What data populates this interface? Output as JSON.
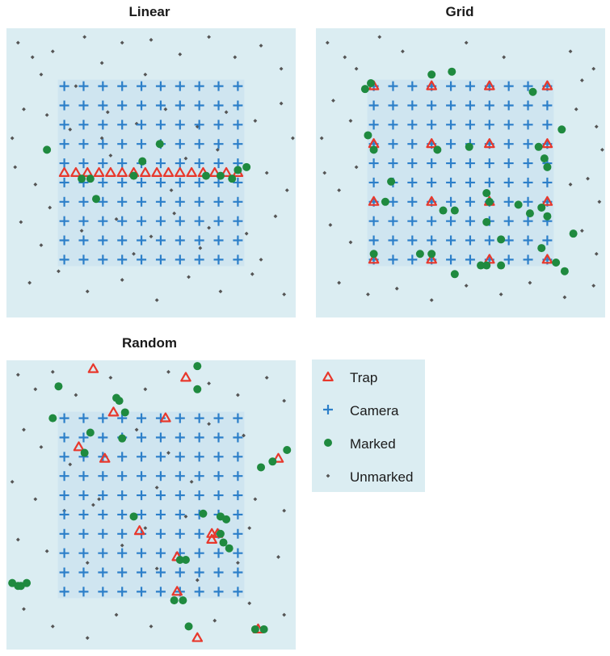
{
  "colors": {
    "panel_bg": "#dbedf2",
    "inner_bg": "#cfe5f0",
    "trap": "#e8382c",
    "camera": "#2c7fc9",
    "marked": "#1f8a3f",
    "unmarked": "#555555"
  },
  "legend": {
    "placement": "right-bottom",
    "items": [
      {
        "label": "Trap",
        "symbol": "triangle-icon"
      },
      {
        "label": "Camera",
        "symbol": "plus-icon"
      },
      {
        "label": "Marked",
        "symbol": "circle-icon"
      },
      {
        "label": "Unmarked",
        "symbol": "diamond-icon"
      }
    ]
  },
  "chart_data": [
    {
      "type": "scatter",
      "title": "Linear",
      "xlim": [
        0,
        100
      ],
      "ylim": [
        0,
        100
      ],
      "camera_grid": {
        "cols": 10,
        "rows": 10,
        "x_start": 20,
        "x_end": 80,
        "y_start": 80,
        "y_end": 20
      },
      "traps": [
        [
          20,
          50
        ],
        [
          24,
          50
        ],
        [
          28,
          50
        ],
        [
          32,
          50
        ],
        [
          36,
          50
        ],
        [
          40,
          50
        ],
        [
          44,
          50
        ],
        [
          48,
          50
        ],
        [
          52,
          50
        ],
        [
          56,
          50
        ],
        [
          60,
          50
        ],
        [
          64,
          50
        ],
        [
          68,
          50
        ],
        [
          72,
          50
        ],
        [
          76,
          50
        ],
        [
          80,
          50
        ]
      ],
      "marked": [
        [
          14,
          58
        ],
        [
          53,
          60
        ],
        [
          47,
          54
        ],
        [
          26,
          48
        ],
        [
          44,
          49
        ],
        [
          29,
          48
        ],
        [
          69,
          49
        ],
        [
          83,
          52
        ],
        [
          78,
          48
        ],
        [
          31,
          41
        ],
        [
          74,
          49
        ],
        [
          80,
          51
        ]
      ],
      "unmarked": [
        [
          4,
          95
        ],
        [
          9,
          90
        ],
        [
          12,
          84
        ],
        [
          16,
          92
        ],
        [
          27,
          97
        ],
        [
          33,
          88
        ],
        [
          40,
          95
        ],
        [
          50,
          96
        ],
        [
          60,
          91
        ],
        [
          70,
          97
        ],
        [
          79,
          90
        ],
        [
          88,
          94
        ],
        [
          95,
          86
        ],
        [
          6,
          72
        ],
        [
          14,
          70
        ],
        [
          22,
          65
        ],
        [
          35,
          71
        ],
        [
          45,
          67
        ],
        [
          55,
          72
        ],
        [
          66,
          66
        ],
        [
          76,
          71
        ],
        [
          86,
          68
        ],
        [
          95,
          74
        ],
        [
          3,
          52
        ],
        [
          10,
          46
        ],
        [
          36,
          56
        ],
        [
          62,
          55
        ],
        [
          90,
          50
        ],
        [
          97,
          44
        ],
        [
          5,
          33
        ],
        [
          15,
          38
        ],
        [
          26,
          30
        ],
        [
          38,
          34
        ],
        [
          50,
          28
        ],
        [
          58,
          36
        ],
        [
          70,
          31
        ],
        [
          83,
          29
        ],
        [
          93,
          35
        ],
        [
          8,
          12
        ],
        [
          18,
          16
        ],
        [
          28,
          9
        ],
        [
          40,
          13
        ],
        [
          52,
          6
        ],
        [
          63,
          14
        ],
        [
          74,
          9
        ],
        [
          85,
          15
        ],
        [
          96,
          8
        ],
        [
          12,
          25
        ],
        [
          44,
          22
        ],
        [
          67,
          24
        ],
        [
          88,
          20
        ],
        [
          2,
          62
        ],
        [
          99,
          62
        ],
        [
          48,
          84
        ],
        [
          24,
          80
        ],
        [
          57,
          44
        ],
        [
          73,
          58
        ],
        [
          33,
          62
        ]
      ]
    },
    {
      "type": "scatter",
      "title": "Grid",
      "xlim": [
        0,
        100
      ],
      "ylim": [
        0,
        100
      ],
      "camera_grid": {
        "cols": 10,
        "rows": 10,
        "x_start": 20,
        "x_end": 80,
        "y_start": 80,
        "y_end": 20
      },
      "traps": [
        [
          20,
          80
        ],
        [
          40,
          80
        ],
        [
          60,
          80
        ],
        [
          80,
          80
        ],
        [
          20,
          60
        ],
        [
          40,
          60
        ],
        [
          60,
          60
        ],
        [
          80,
          60
        ],
        [
          20,
          40
        ],
        [
          40,
          40
        ],
        [
          60,
          40
        ],
        [
          80,
          40
        ],
        [
          20,
          20
        ],
        [
          40,
          20
        ],
        [
          60,
          20
        ],
        [
          80,
          20
        ]
      ],
      "marked": [
        [
          17,
          79
        ],
        [
          19,
          81
        ],
        [
          40,
          84
        ],
        [
          47,
          85
        ],
        [
          75,
          78
        ],
        [
          85,
          65
        ],
        [
          18,
          63
        ],
        [
          20,
          58
        ],
        [
          42,
          58
        ],
        [
          53,
          59
        ],
        [
          77,
          59
        ],
        [
          79,
          55
        ],
        [
          80,
          52
        ],
        [
          26,
          47
        ],
        [
          24,
          40
        ],
        [
          59,
          43
        ],
        [
          60,
          40
        ],
        [
          70,
          39
        ],
        [
          78,
          38
        ],
        [
          44,
          37
        ],
        [
          48,
          37
        ],
        [
          59,
          33
        ],
        [
          74,
          36
        ],
        [
          80,
          35
        ],
        [
          64,
          27
        ],
        [
          78,
          24
        ],
        [
          89,
          29
        ],
        [
          20,
          22
        ],
        [
          36,
          22
        ],
        [
          40,
          22
        ],
        [
          57,
          18
        ],
        [
          59,
          18
        ],
        [
          64,
          18
        ],
        [
          83,
          19
        ],
        [
          86,
          16
        ],
        [
          48,
          15
        ]
      ],
      "unmarked": [
        [
          4,
          95
        ],
        [
          10,
          90
        ],
        [
          14,
          86
        ],
        [
          22,
          97
        ],
        [
          30,
          92
        ],
        [
          52,
          95
        ],
        [
          65,
          90
        ],
        [
          88,
          92
        ],
        [
          96,
          86
        ],
        [
          6,
          75
        ],
        [
          12,
          68
        ],
        [
          90,
          72
        ],
        [
          97,
          66
        ],
        [
          3,
          50
        ],
        [
          8,
          44
        ],
        [
          94,
          48
        ],
        [
          98,
          40
        ],
        [
          5,
          32
        ],
        [
          12,
          26
        ],
        [
          92,
          30
        ],
        [
          97,
          22
        ],
        [
          8,
          12
        ],
        [
          18,
          8
        ],
        [
          28,
          10
        ],
        [
          40,
          6
        ],
        [
          52,
          11
        ],
        [
          64,
          8
        ],
        [
          74,
          12
        ],
        [
          86,
          7
        ],
        [
          96,
          11
        ],
        [
          2,
          62
        ],
        [
          99,
          58
        ],
        [
          92,
          82
        ],
        [
          14,
          52
        ],
        [
          88,
          46
        ]
      ]
    },
    {
      "type": "scatter",
      "title": "Random",
      "xlim": [
        0,
        100
      ],
      "ylim": [
        0,
        100
      ],
      "camera_grid": {
        "cols": 10,
        "rows": 10,
        "x_start": 20,
        "x_end": 80,
        "y_start": 80,
        "y_end": 20
      },
      "traps": [
        [
          30,
          97
        ],
        [
          62,
          94
        ],
        [
          37,
          82
        ],
        [
          55,
          80
        ],
        [
          25,
          70
        ],
        [
          34,
          66
        ],
        [
          94,
          66
        ],
        [
          46,
          41
        ],
        [
          71,
          40
        ],
        [
          73,
          40
        ],
        [
          71,
          38
        ],
        [
          59,
          32
        ],
        [
          59,
          20
        ],
        [
          66,
          4
        ],
        [
          87,
          7
        ]
      ],
      "marked": [
        [
          18,
          91
        ],
        [
          66,
          98
        ],
        [
          66,
          90
        ],
        [
          38,
          87
        ],
        [
          39,
          86
        ],
        [
          41,
          82
        ],
        [
          16,
          80
        ],
        [
          29,
          75
        ],
        [
          40,
          73
        ],
        [
          27,
          68
        ],
        [
          97,
          69
        ],
        [
          92,
          65
        ],
        [
          88,
          63
        ],
        [
          44,
          46
        ],
        [
          68,
          47
        ],
        [
          74,
          46
        ],
        [
          76,
          45
        ],
        [
          74,
          40
        ],
        [
          75,
          37
        ],
        [
          77,
          35
        ],
        [
          60,
          31
        ],
        [
          62,
          31
        ],
        [
          2,
          23
        ],
        [
          7,
          23
        ],
        [
          5,
          22
        ],
        [
          4,
          22
        ],
        [
          58,
          17
        ],
        [
          61,
          17
        ],
        [
          63,
          8
        ],
        [
          86,
          7
        ],
        [
          89,
          7
        ]
      ],
      "unmarked": [
        [
          4,
          95
        ],
        [
          10,
          90
        ],
        [
          16,
          96
        ],
        [
          24,
          88
        ],
        [
          36,
          94
        ],
        [
          48,
          90
        ],
        [
          56,
          96
        ],
        [
          70,
          92
        ],
        [
          80,
          88
        ],
        [
          90,
          94
        ],
        [
          96,
          86
        ],
        [
          6,
          76
        ],
        [
          12,
          70
        ],
        [
          22,
          64
        ],
        [
          45,
          76
        ],
        [
          56,
          68
        ],
        [
          70,
          78
        ],
        [
          82,
          74
        ],
        [
          2,
          58
        ],
        [
          10,
          52
        ],
        [
          20,
          48
        ],
        [
          32,
          52
        ],
        [
          52,
          56
        ],
        [
          64,
          58
        ],
        [
          86,
          52
        ],
        [
          96,
          48
        ],
        [
          4,
          38
        ],
        [
          14,
          34
        ],
        [
          28,
          30
        ],
        [
          40,
          36
        ],
        [
          52,
          28
        ],
        [
          66,
          24
        ],
        [
          80,
          30
        ],
        [
          94,
          32
        ],
        [
          6,
          14
        ],
        [
          16,
          8
        ],
        [
          28,
          4
        ],
        [
          38,
          12
        ],
        [
          50,
          8
        ],
        [
          72,
          10
        ],
        [
          84,
          16
        ],
        [
          96,
          12
        ],
        [
          30,
          50
        ],
        [
          48,
          42
        ],
        [
          62,
          46
        ],
        [
          84,
          42
        ]
      ]
    }
  ]
}
